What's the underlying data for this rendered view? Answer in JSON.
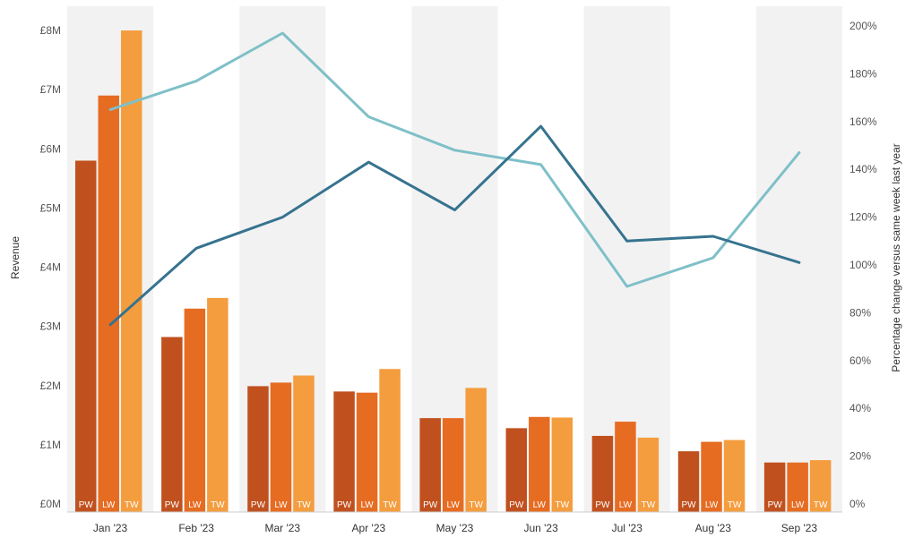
{
  "chart_data": {
    "type": "bar",
    "categories": [
      "Jan '23",
      "Feb '23",
      "Mar '23",
      "Apr '23",
      "May '23",
      "Jun '23",
      "Jul '23",
      "Aug '23",
      "Sep '23"
    ],
    "bar_series": [
      {
        "name": "PW",
        "color": "#C0511F",
        "values": [
          5.8,
          2.82,
          1.99,
          1.9,
          1.45,
          1.28,
          1.15,
          0.89,
          0.7
        ]
      },
      {
        "name": "LW",
        "color": "#E66C22",
        "values": [
          6.9,
          3.3,
          2.05,
          1.88,
          1.45,
          1.47,
          1.39,
          1.05,
          0.7
        ]
      },
      {
        "name": "TW",
        "color": "#F49D3F",
        "values": [
          8.0,
          3.48,
          2.17,
          2.28,
          1.96,
          1.46,
          1.12,
          1.08,
          0.74
        ]
      }
    ],
    "line_series": [
      {
        "color": "#7FC0C8",
        "values": [
          165,
          177,
          197,
          162,
          148,
          142,
          91,
          103,
          147
        ]
      },
      {
        "color": "#36738F",
        "values": [
          75,
          107,
          120,
          143,
          123,
          158,
          110,
          112,
          101
        ]
      }
    ],
    "ylabel": "Revenue",
    "ylabel_right": "Percentage change versus same week last year",
    "y_ticks": [
      "£0M",
      "£1M",
      "£2M",
      "£3M",
      "£4M",
      "£5M",
      "£6M",
      "£7M",
      "£8M"
    ],
    "ylim": [
      0,
      8
    ],
    "y2_ticks": [
      "0%",
      "20%",
      "40%",
      "60%",
      "80%",
      "100%",
      "120%",
      "140%",
      "160%",
      "180%",
      "200%"
    ],
    "y2lim": [
      0,
      200
    ],
    "grid": false,
    "band_color": "#F2F2F2"
  }
}
